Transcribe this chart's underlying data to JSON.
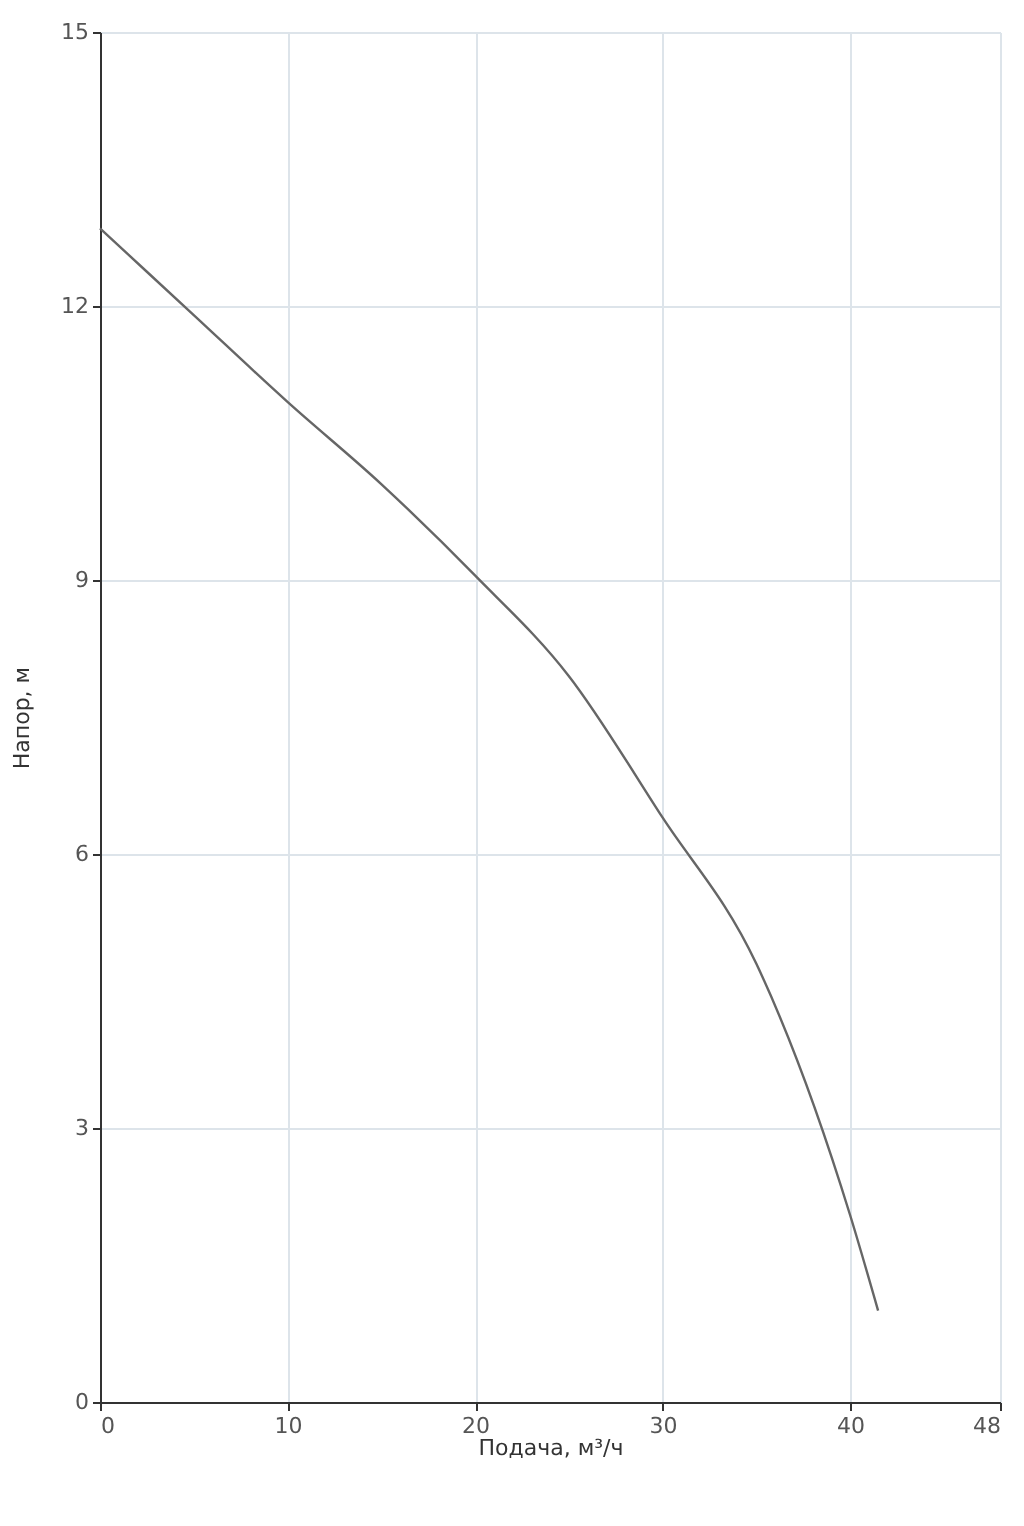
{
  "chart_data": {
    "type": "line",
    "xlabel": "Подача, м³/ч",
    "ylabel": "Напор, м",
    "x": [
      0,
      5,
      10,
      15,
      20,
      25,
      30,
      35,
      40,
      41.5
    ],
    "series": [
      {
        "color": "#666666",
        "values": [
          12.85,
          11.9,
          10.95,
          10.05,
          9.05,
          7.95,
          6.4,
          4.8,
          2.05,
          1.0
        ]
      }
    ],
    "xlim": [
      0,
      48
    ],
    "xticks": [
      0,
      10,
      20,
      30,
      40,
      48
    ],
    "ylim": [
      0,
      15
    ],
    "yticks": [
      0,
      3,
      6,
      9,
      12,
      15
    ],
    "grid": true,
    "marker": "none",
    "line_style": "solid"
  }
}
